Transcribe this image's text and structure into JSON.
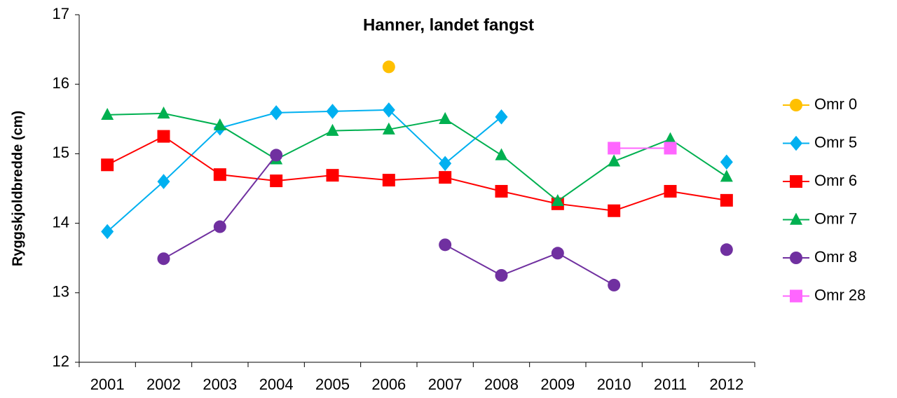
{
  "chart_data": {
    "type": "line",
    "title": "Hanner, landet fangst",
    "y_label": "Ryggskjoldbredde (cm)",
    "categories": [
      "2001",
      "2002",
      "2003",
      "2004",
      "2005",
      "2006",
      "2007",
      "2008",
      "2009",
      "2010",
      "2011",
      "2012"
    ],
    "ylim": [
      12,
      17
    ],
    "yticks": [
      12,
      13,
      14,
      15,
      16,
      17
    ],
    "grid": false,
    "legend": "right",
    "series": [
      {
        "name": "Omr 0",
        "color": "#FFC000",
        "marker": "circle",
        "values": [
          null,
          null,
          null,
          null,
          null,
          16.25,
          null,
          null,
          null,
          null,
          null,
          null
        ]
      },
      {
        "name": "Omr 5",
        "color": "#00B0F0",
        "marker": "diamond",
        "values": [
          13.88,
          14.6,
          15.37,
          15.59,
          15.61,
          15.63,
          14.86,
          15.53,
          null,
          null,
          null,
          14.88
        ]
      },
      {
        "name": "Omr 6",
        "color": "#FF0000",
        "marker": "square",
        "values": [
          14.84,
          15.25,
          14.7,
          14.61,
          14.69,
          14.62,
          14.66,
          14.46,
          14.28,
          14.18,
          14.46,
          14.33
        ]
      },
      {
        "name": "Omr 7",
        "color": "#00B050",
        "marker": "triangle",
        "values": [
          15.56,
          15.58,
          15.41,
          14.92,
          15.33,
          15.35,
          15.5,
          14.98,
          14.32,
          14.89,
          15.21,
          14.67
        ]
      },
      {
        "name": "Omr 8",
        "color": "#7030A0",
        "marker": "circle",
        "values": [
          null,
          13.49,
          13.95,
          14.98,
          null,
          null,
          13.69,
          13.25,
          13.57,
          13.11,
          null,
          13.62
        ]
      },
      {
        "name": "Omr 28",
        "color": "#FF66FF",
        "marker": "square",
        "values": [
          null,
          null,
          null,
          null,
          null,
          null,
          null,
          null,
          null,
          15.08,
          15.08,
          null
        ]
      }
    ]
  }
}
